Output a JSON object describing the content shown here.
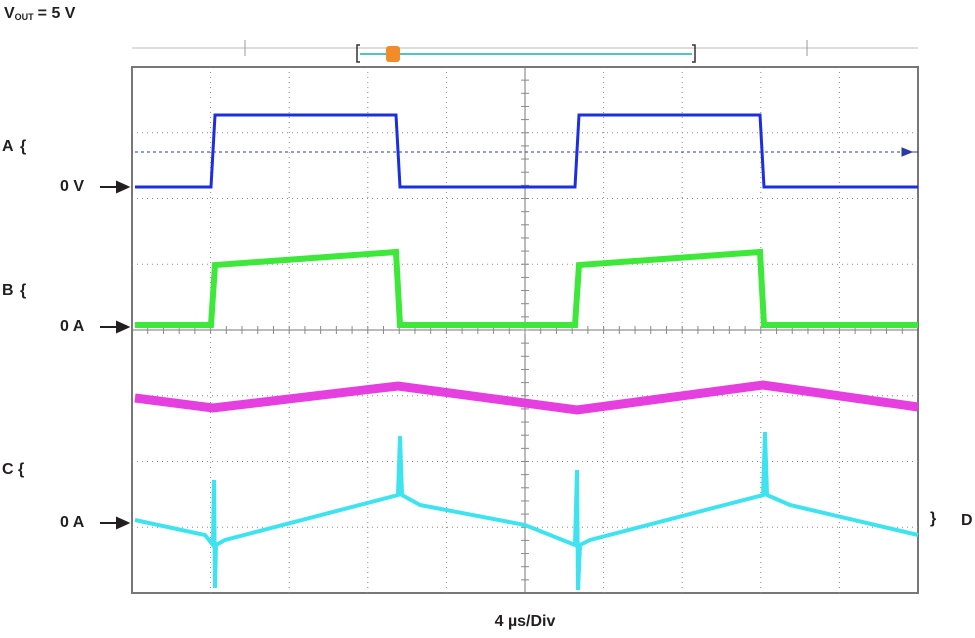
{
  "title": {
    "main": "V",
    "sub": "OUT",
    "rest": "= 5 V"
  },
  "channels": [
    {
      "letter": "A",
      "zero_label": "0 V"
    },
    {
      "letter": "B",
      "zero_label": "0 A"
    },
    {
      "letter": "C",
      "zero_label": "0 A"
    },
    {
      "letter": "D"
    }
  ],
  "timebase": "4 µs/Div"
}
